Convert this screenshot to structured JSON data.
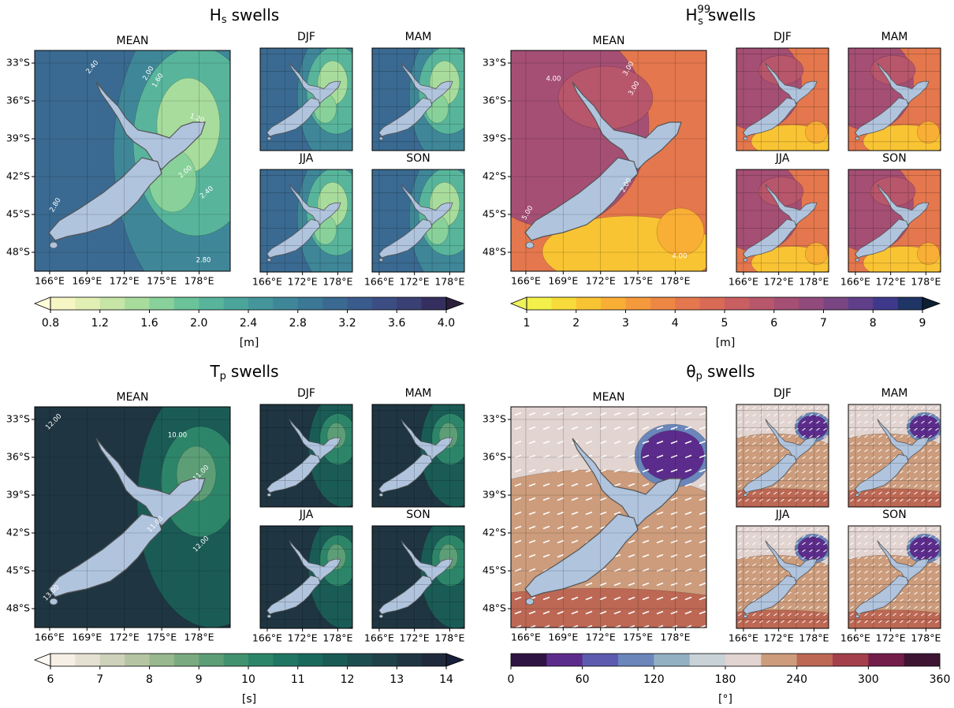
{
  "mean_label": "MEAN",
  "seasons": [
    "DJF",
    "MAM",
    "JJA",
    "SON"
  ],
  "latlim": [
    -32,
    -49.5
  ],
  "lonlim": [
    164.8,
    180.5
  ],
  "lat_ticks": [
    {
      "value": -33,
      "label": "33°S"
    },
    {
      "value": -36,
      "label": "36°S"
    },
    {
      "value": -39,
      "label": "39°S"
    },
    {
      "value": -42,
      "label": "42°S"
    },
    {
      "value": -45,
      "label": "45°S"
    },
    {
      "value": -48,
      "label": "48°S"
    }
  ],
  "lon_ticks": [
    {
      "value": 166,
      "label": "166°E"
    },
    {
      "value": 169,
      "label": "169°E"
    },
    {
      "value": 172,
      "label": "172°E"
    },
    {
      "value": 175,
      "label": "175°E"
    },
    {
      "value": 178,
      "label": "178°E"
    }
  ],
  "panels": [
    {
      "title": {
        "main": "H",
        "sub": "s",
        "rest": "swells"
      },
      "colorbar": {
        "lim": [
          0.8,
          4.0
        ],
        "ticks": [
          0.8,
          1.2,
          1.6,
          {
            "value": 2,
            "label": "2.0"
          },
          2.4,
          2.8,
          3.2,
          3.6,
          {
            "value": 4,
            "label": "4.0"
          }
        ],
        "extend": "both",
        "colors": [
          "#f6f5c4",
          "#e2efb4",
          "#c6e5a6",
          "#a8dc9c",
          "#88d19a",
          "#6bc39a",
          "#58b59b",
          "#4ba59b",
          "#44969a",
          "#3f8798",
          "#3b7895",
          "#3a6a91",
          "#3a5c8c",
          "#3b4d83",
          "#3a3f74",
          "#352f60"
        ],
        "under": "#fdfcd9",
        "over": "#2c1f3b",
        "unit": "[m]"
      },
      "contour_labels": [
        "2.40",
        "2.00",
        "1.60",
        "1.20",
        "2.00",
        "2.40",
        "2.80",
        "2.80"
      ]
    },
    {
      "title": {
        "main": "H",
        "sub": "s",
        "sup": "99",
        "rest": "swells"
      },
      "colorbar": {
        "lim": [
          1,
          9
        ],
        "ticks": [
          1,
          2,
          3,
          4,
          5,
          6,
          7,
          8,
          9
        ],
        "extend": "both",
        "colors": [
          "#f3f04b",
          "#f7db3a",
          "#f9c433",
          "#f9ae35",
          "#f59a3c",
          "#ee8744",
          "#e4774d",
          "#d86a56",
          "#c95f61",
          "#b8566b",
          "#a54f74",
          "#904a7c",
          "#7a4583",
          "#5f3f8a",
          "#3f398c",
          "#1e3565"
        ],
        "under": "#eef35a",
        "over": "#0c1f33",
        "unit": "[m]"
      },
      "contour_labels": [
        "4.00",
        "3.00",
        "3.00",
        "2.00",
        "5.00",
        "4.00"
      ]
    },
    {
      "title": {
        "main": "T",
        "sub": "p",
        "rest": "swells"
      },
      "colorbar": {
        "lim": [
          6,
          14
        ],
        "ticks": [
          6,
          7,
          8,
          9,
          10,
          11,
          12,
          13,
          14
        ],
        "extend": "both",
        "colors": [
          "#f6efe6",
          "#e5e1d2",
          "#cfd2ba",
          "#b5c5a3",
          "#98b88f",
          "#7aab80",
          "#5d9e77",
          "#43926f",
          "#2d8569",
          "#1f7763",
          "#1a695d",
          "#1b5b56",
          "#1d4e4f",
          "#1e4248",
          "#1f3642",
          "#1f2b3c"
        ],
        "under": "#fcf8f3",
        "over": "#181f39",
        "unit": "[s]"
      },
      "contour_labels": [
        "12.00",
        "10.00",
        "11.00",
        "11.00",
        "12.00",
        "13.00"
      ]
    },
    {
      "title": {
        "main": "θ",
        "sub": "p",
        "rest": "swells"
      },
      "colorbar": {
        "lim": [
          0,
          360
        ],
        "ticks": [
          0,
          60,
          120,
          180,
          240,
          300,
          360
        ],
        "extend": "neither",
        "colors": [
          "#2e1443",
          "#5c2c8c",
          "#5d5bb0",
          "#6a86bb",
          "#93afc2",
          "#c9d2d6",
          "#e2d4d0",
          "#cc9c7c",
          "#bd6854",
          "#a4404b",
          "#731d4b",
          "#3e1533"
        ],
        "unit": "[°]"
      },
      "contour_labels": []
    }
  ]
}
